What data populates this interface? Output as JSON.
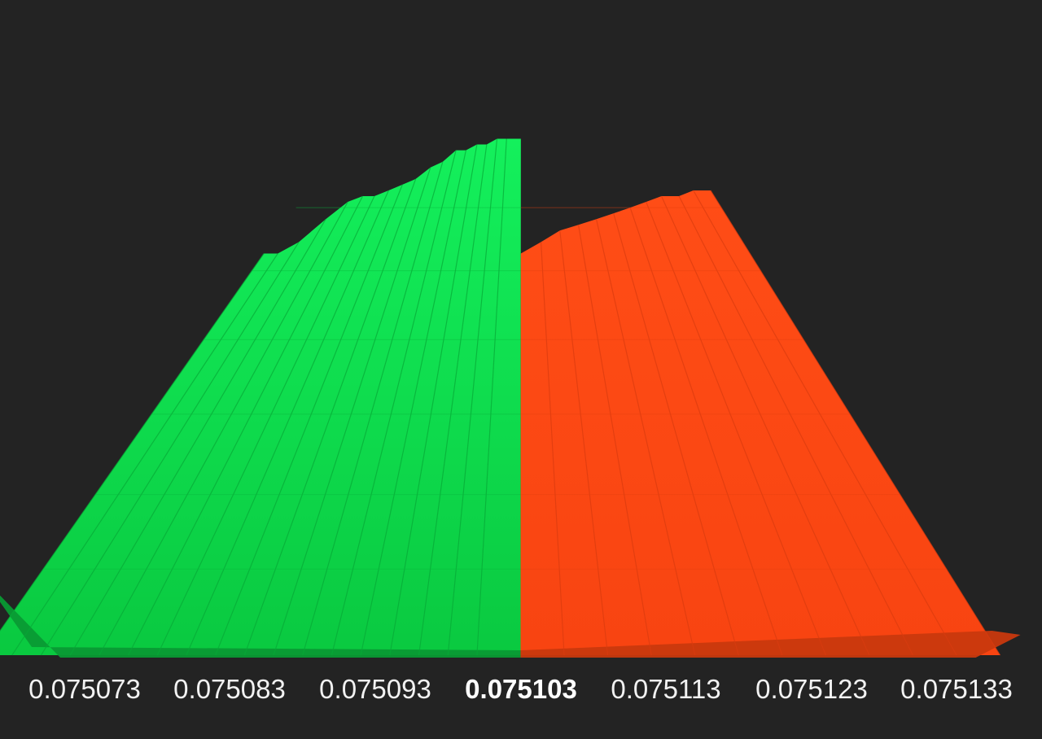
{
  "chart_data": {
    "type": "area",
    "title": "",
    "xlabel": "",
    "ylabel": "",
    "price_ticks": [
      "0.075073",
      "0.075083",
      "0.075093",
      "0.075103",
      "0.075113",
      "0.075123",
      "0.075133"
    ],
    "mid_price": "0.075103",
    "xlim": [
      0.075073,
      0.075133
    ],
    "bids": {
      "color": "#0ccc46",
      "side_color": "#0a9a34",
      "price": [
        0.075103,
        0.0751,
        0.075098,
        0.075096,
        0.075094,
        0.075092,
        0.07509,
        0.075088,
        0.075086,
        0.075084,
        0.075082,
        0.07508,
        0.075078,
        0.075076,
        0.075074,
        0.075072,
        0.07507,
        0.075068,
        0.075066
      ],
      "depth": [
        0.9,
        0.9,
        0.9,
        0.89,
        0.89,
        0.88,
        0.88,
        0.86,
        0.85,
        0.83,
        0.82,
        0.81,
        0.8,
        0.8,
        0.79,
        0.76,
        0.72,
        0.7,
        0.7
      ]
    },
    "asks": {
      "color": "#fb4612",
      "side_color": "#c9390e",
      "price": [
        0.075103,
        0.075106,
        0.075109,
        0.075112,
        0.075115,
        0.075118,
        0.075121,
        0.075124,
        0.075127,
        0.07513,
        0.075133,
        0.075136
      ],
      "depth": [
        0.7,
        0.72,
        0.74,
        0.75,
        0.76,
        0.77,
        0.78,
        0.79,
        0.8,
        0.8,
        0.81,
        0.81
      ]
    }
  }
}
